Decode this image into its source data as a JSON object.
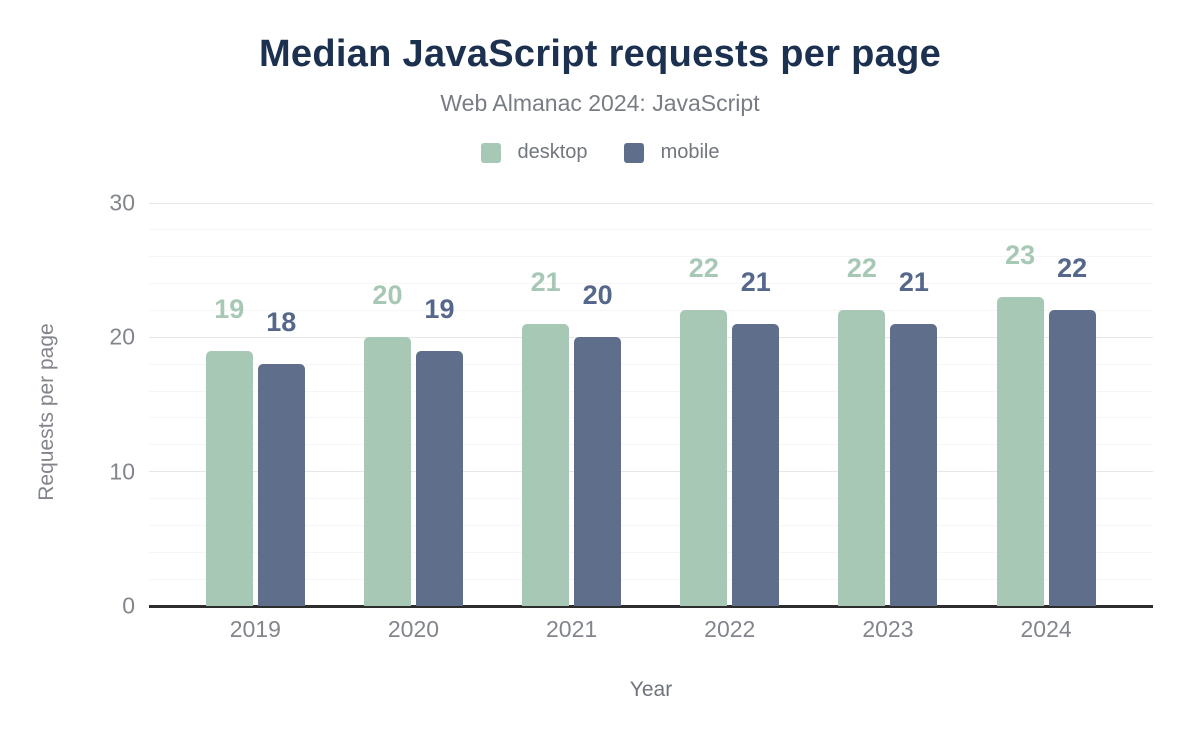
{
  "chart_data": {
    "type": "bar",
    "title": "Median JavaScript requests per page",
    "subtitle": "Web Almanac 2024: JavaScript",
    "xlabel": "Year",
    "ylabel": "Requests per page",
    "categories": [
      "2019",
      "2020",
      "2021",
      "2022",
      "2023",
      "2024"
    ],
    "series": [
      {
        "name": "desktop",
        "color": "#a7c8b5",
        "label_color": "#a7c8b5",
        "values": [
          19,
          20,
          21,
          22,
          22,
          23
        ]
      },
      {
        "name": "mobile",
        "color": "#5f6e8a",
        "label_color": "#55678a",
        "values": [
          18,
          19,
          20,
          21,
          21,
          22
        ]
      }
    ],
    "ylim": [
      0,
      30
    ],
    "yticks": [
      0,
      10,
      20,
      30
    ],
    "minor_grid_step": 2,
    "grid": "horizontal",
    "legend_position": "top",
    "bar_labels": true,
    "colors": {
      "title": "#1c3050",
      "subtitle_text": "#787d85",
      "legend_text": "#72777f",
      "tick_text": "#82868c",
      "axis_title_text": "#6f747c",
      "axis_line": "#2d2d2d",
      "gridline_minor": "#f6f6f6",
      "gridline_major": "#e7e7e7"
    }
  }
}
